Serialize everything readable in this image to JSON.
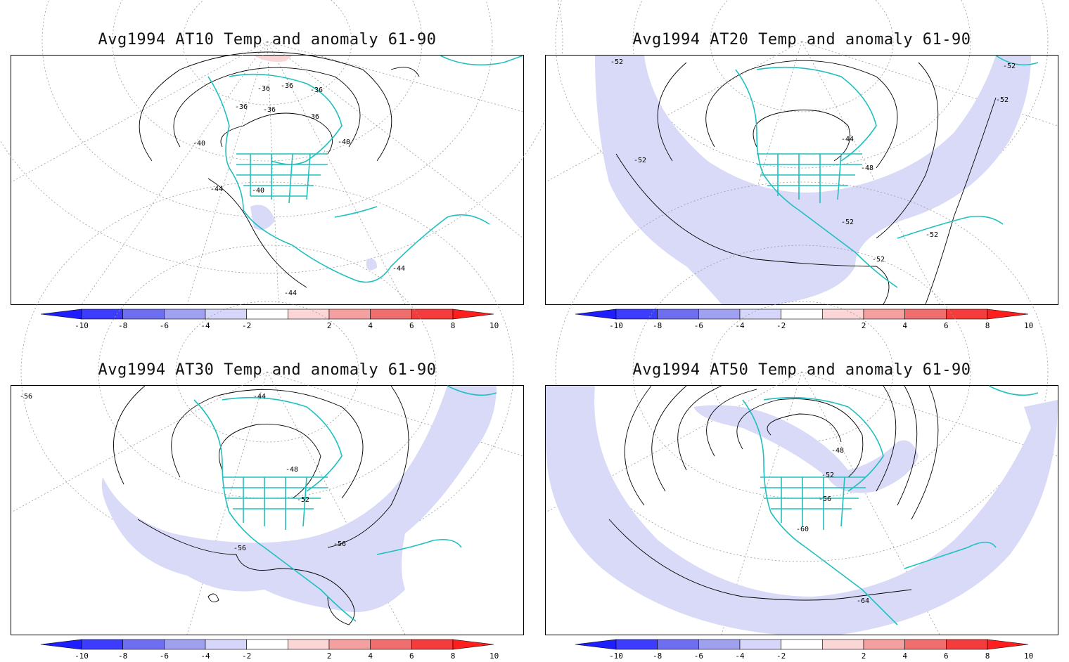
{
  "panels": [
    {
      "title": "Avg1994 AT10 Temp and anomaly 61-90",
      "contour_labels": [
        "-36",
        "-36",
        "-36",
        "-36",
        "-36",
        "-36",
        "-40",
        "-40",
        "-40",
        "-44",
        "-44",
        "-44"
      ],
      "anomaly_regions": [
        "positive near pole (+2)",
        "negative western Mexico (-2)",
        "negative Yucatan (-2)"
      ]
    },
    {
      "title": "Avg1994 AT20 Temp and anomaly 61-90",
      "contour_labels": [
        "-52",
        "-52",
        "-52",
        "-52",
        "-44",
        "-48",
        "-52",
        "-52",
        "-52"
      ],
      "anomaly_regions": [
        "negative band across subtropics (-2)"
      ]
    },
    {
      "title": "Avg1994 AT30 Temp and anomaly 61-90",
      "contour_labels": [
        "-56",
        "-44",
        "-48",
        "-52",
        "-56",
        "-56"
      ],
      "anomaly_regions": [
        "negative band across subtropics (-2)"
      ]
    },
    {
      "title": "Avg1994 AT50 Temp and anomaly 61-90",
      "contour_labels": [
        "-48",
        "-52",
        "-56",
        "-60",
        "-64"
      ],
      "anomaly_regions": [
        "negative outer band (-2)",
        "negative Hudson Bay band (-2)"
      ]
    }
  ],
  "colorbar": {
    "labels": [
      "-10",
      "-8",
      "-6",
      "-4",
      "-2",
      "2",
      "4",
      "6",
      "8",
      "10"
    ],
    "colors": [
      "#1e1eff",
      "#3c3cff",
      "#6e6ef0",
      "#a0a0f0",
      "#d6d6fa",
      "#ffffff",
      "#fad6d6",
      "#f5a0a0",
      "#f06e6e",
      "#f53c3c",
      "#ff1e1e"
    ]
  },
  "colors": {
    "coastline": "#20c0c0",
    "anomaly_negative": "#d9d9f8",
    "anomaly_positive": "#fad6d6",
    "contour": "#000000",
    "graticule": "#888888"
  }
}
